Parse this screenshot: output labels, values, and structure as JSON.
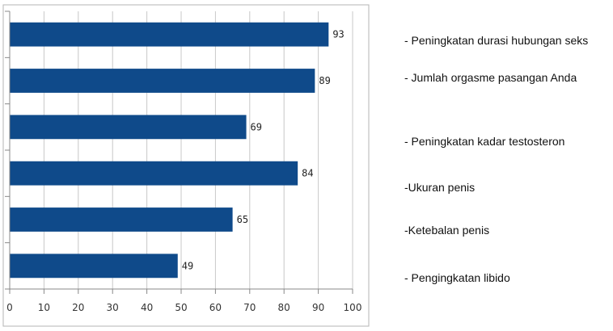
{
  "chart_data": {
    "type": "bar",
    "orientation": "horizontal",
    "title": "",
    "xlabel": "",
    "ylabel": "",
    "categories": [
      "- Peningkatan durasi hubungan seks",
      "- Jumlah orgasme pasangan Anda",
      "- Peningkatan kadar testosteron",
      "-Ukuran penis",
      "-Ketebalan penis",
      "- Pengingkatan libido"
    ],
    "values": [
      93,
      89,
      69,
      84,
      65,
      49
    ],
    "data_labels": [
      "93",
      "89",
      "69",
      "84",
      "65",
      "49"
    ],
    "xlim": [
      0,
      100
    ],
    "x_ticks": [
      "0",
      "10",
      "20",
      "30",
      "40",
      "50",
      "60",
      "70",
      "80",
      "90",
      "100"
    ],
    "grid": "vertical",
    "legend_placement": "right",
    "colors": {
      "bar": "#0f4a8a",
      "grid": "#c8c8c8",
      "frame": "#b4b4b4"
    }
  }
}
